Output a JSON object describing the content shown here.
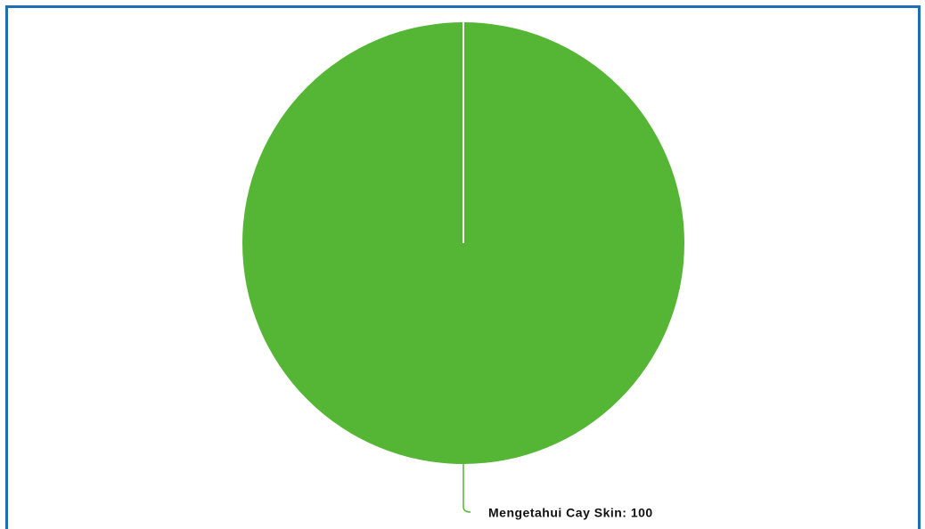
{
  "chart_data": {
    "type": "pie",
    "values": [
      100
    ],
    "value_labels": [
      "Mengetahui Cay Skin: 100"
    ],
    "colors": [
      "#55b535"
    ]
  }
}
